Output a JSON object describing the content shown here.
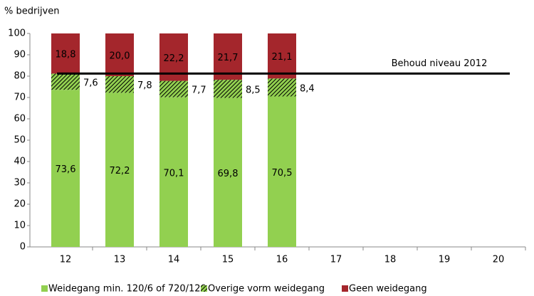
{
  "chart_data": {
    "type": "stacked_bar",
    "y_label": "% bedrijven",
    "categories": [
      "12",
      "13",
      "14",
      "15",
      "16",
      "17",
      "18",
      "19",
      "20"
    ],
    "series": [
      {
        "name": "Weidegang min. 120/6 of 720/120",
        "color": "#92d050",
        "values": [
          73.6,
          72.2,
          70.1,
          69.8,
          70.5,
          null,
          null,
          null,
          null
        ],
        "value_labels": [
          "73,6",
          "72,2",
          "70,1",
          "69,8",
          "70,5",
          null,
          null,
          null,
          null
        ]
      },
      {
        "name": "Overige vorm weidegang",
        "color": "#92d050",
        "hatch": true,
        "values": [
          7.6,
          7.8,
          7.7,
          8.5,
          8.4,
          null,
          null,
          null,
          null
        ],
        "value_labels": [
          "7,6",
          "7,8",
          "7,7",
          "8,5",
          "8,4",
          null,
          null,
          null,
          null
        ]
      },
      {
        "name": "Geen weidegang",
        "color": "#a4262c",
        "values": [
          18.8,
          20.0,
          22.2,
          21.7,
          21.1,
          null,
          null,
          null,
          null
        ],
        "value_labels": [
          "18,8",
          "20,0",
          "22,2",
          "21,7",
          "21,1",
          null,
          null,
          null,
          null
        ]
      }
    ],
    "reference_line": {
      "label": "Behoud niveau 2012",
      "value": 81.2
    },
    "ylim": [
      0,
      100
    ],
    "yticks": [
      0,
      10,
      20,
      30,
      40,
      50,
      60,
      70,
      80,
      90,
      100
    ],
    "legend": "bottom"
  }
}
